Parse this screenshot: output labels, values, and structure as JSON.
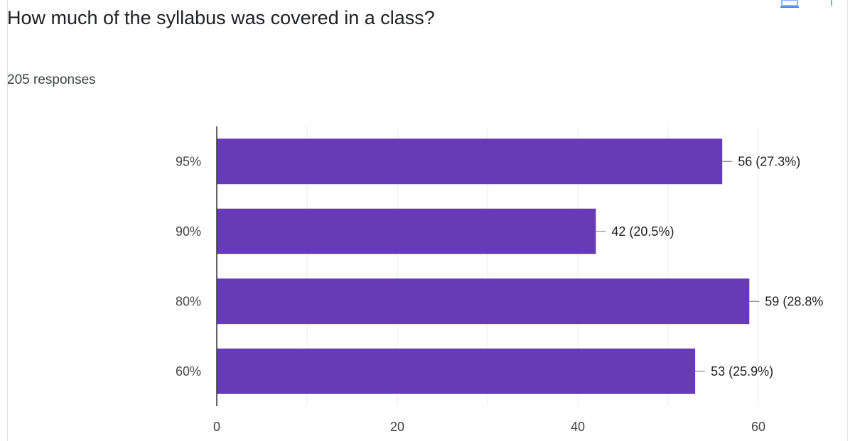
{
  "question": {
    "title": "How much of the syllabus was covered in a class?",
    "responses": "205 responses"
  },
  "icons": {
    "copy": "copy-chart-icon"
  },
  "colors": {
    "bar": "#673AB7",
    "grid": "#ebebeb",
    "axis": "#333333",
    "leader": "#888888"
  },
  "chart_data": {
    "type": "bar",
    "orientation": "horizontal",
    "categories": [
      "95%",
      "90%",
      "80%",
      "60%"
    ],
    "values": [
      56,
      42,
      59,
      53
    ],
    "data_labels": [
      "56 (27.3%)",
      "42 (20.5%)",
      "59 (28.8%",
      "53 (25.9%)"
    ],
    "xlim": [
      0,
      60
    ],
    "xticks": [
      0,
      20,
      40,
      60
    ],
    "grid": true,
    "legend": "none"
  }
}
